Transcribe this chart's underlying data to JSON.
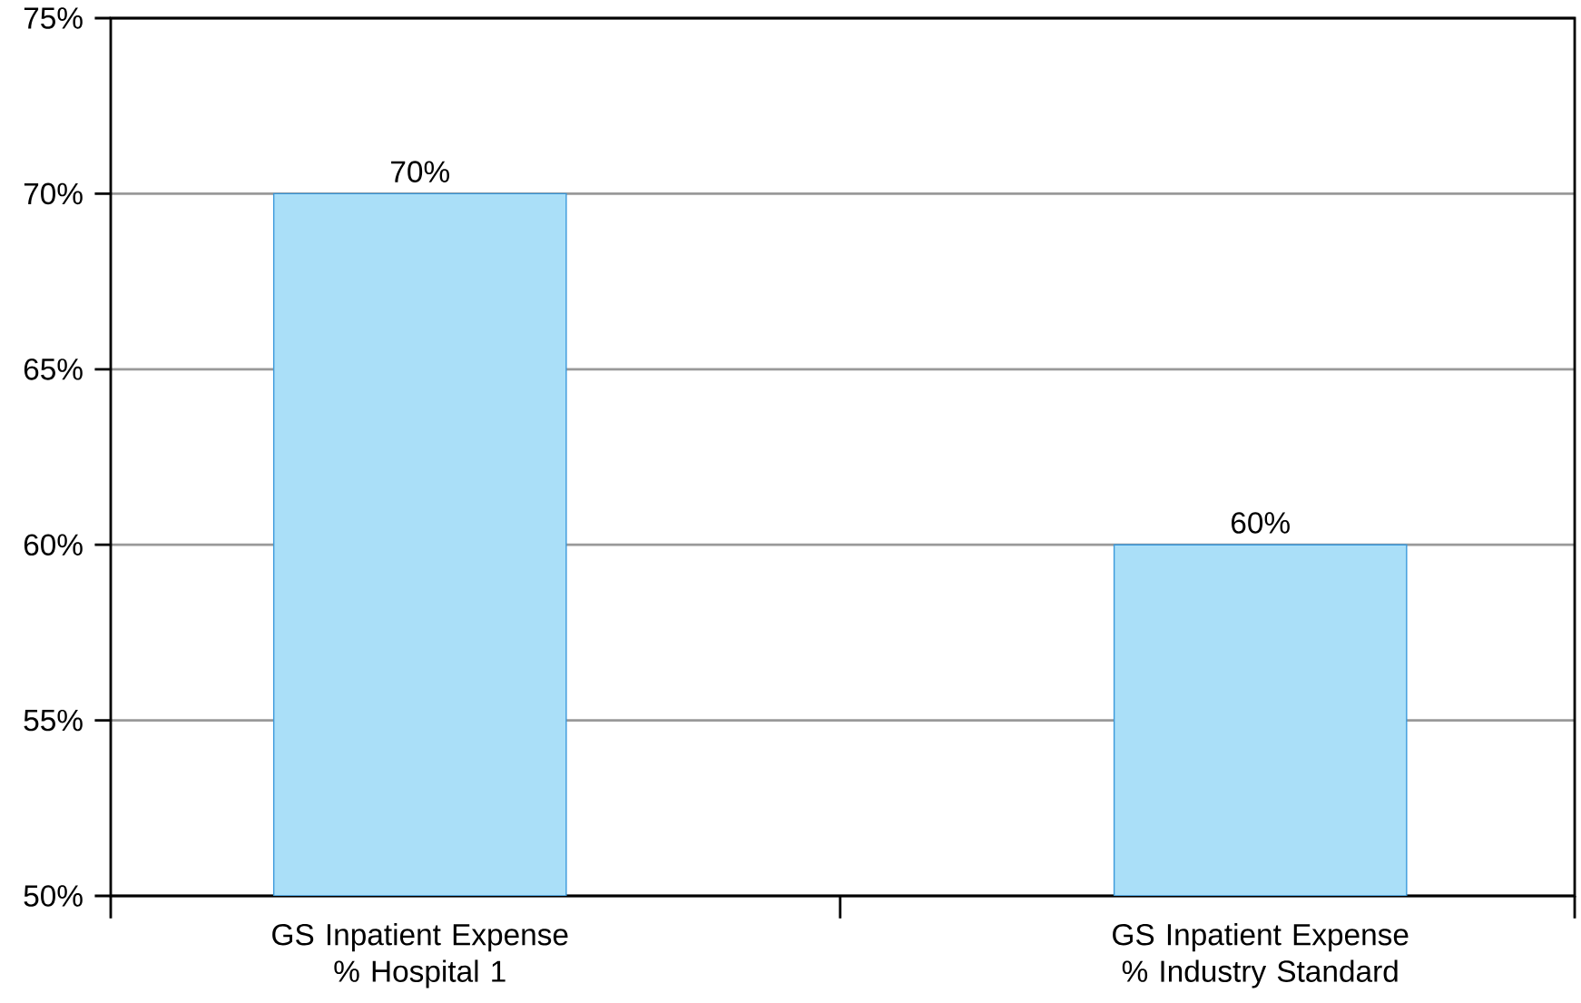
{
  "chart_data": {
    "type": "bar",
    "categories": [
      "GS Inpatient Expense % Hospital 1",
      "GS Inpatient Expense % Industry Standard"
    ],
    "values": [
      70,
      60
    ],
    "color": "#aadff8",
    "value_labels": [
      "70%",
      "60%"
    ],
    "ylim": [
      50,
      75
    ],
    "yticks": [
      {
        "value": 50,
        "label": "50%"
      },
      {
        "value": 55,
        "label": "55%"
      },
      {
        "value": 60,
        "label": "60%"
      },
      {
        "value": 65,
        "label": "65%"
      },
      {
        "value": 70,
        "label": "70%"
      },
      {
        "value": 75,
        "label": "75%"
      }
    ],
    "grid": "y"
  }
}
